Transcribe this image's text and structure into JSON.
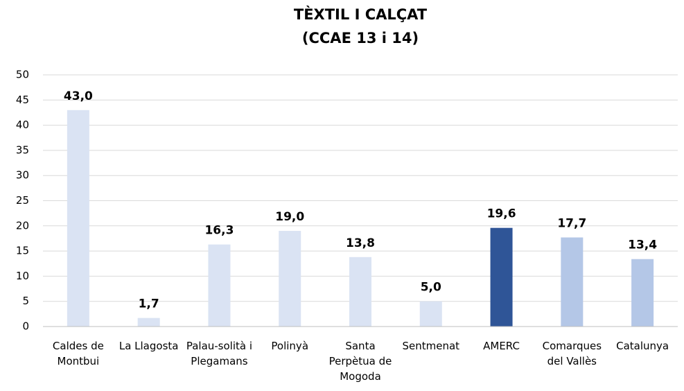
{
  "chart_data": {
    "type": "bar",
    "title": "TÈXTIL I CALÇAT",
    "subtitle": "(CCAE 13 i 14)",
    "categories": [
      "Caldes de Montbui",
      "La Llagosta",
      "Palau-solità i Plegamans",
      "Polinyà",
      "Santa Perpètua de Mogoda",
      "Sentmenat",
      "AMERC",
      "Comarques del Vallès",
      "Catalunya"
    ],
    "values": [
      43.0,
      1.7,
      16.3,
      19.0,
      13.8,
      5.0,
      19.6,
      17.7,
      13.4
    ],
    "value_labels": [
      "43,0",
      "1,7",
      "16,3",
      "19,0",
      "13,8",
      "5,0",
      "19,6",
      "17,7",
      "13,4"
    ],
    "colors": [
      "#dae3f3",
      "#dae3f3",
      "#dae3f3",
      "#dae3f3",
      "#dae3f3",
      "#dae3f3",
      "#2f5597",
      "#b4c7e7",
      "#b4c7e7"
    ],
    "ylim": [
      0,
      50
    ],
    "yticks": [
      0,
      5,
      10,
      15,
      20,
      25,
      30,
      35,
      40,
      45,
      50
    ],
    "grid": true
  }
}
